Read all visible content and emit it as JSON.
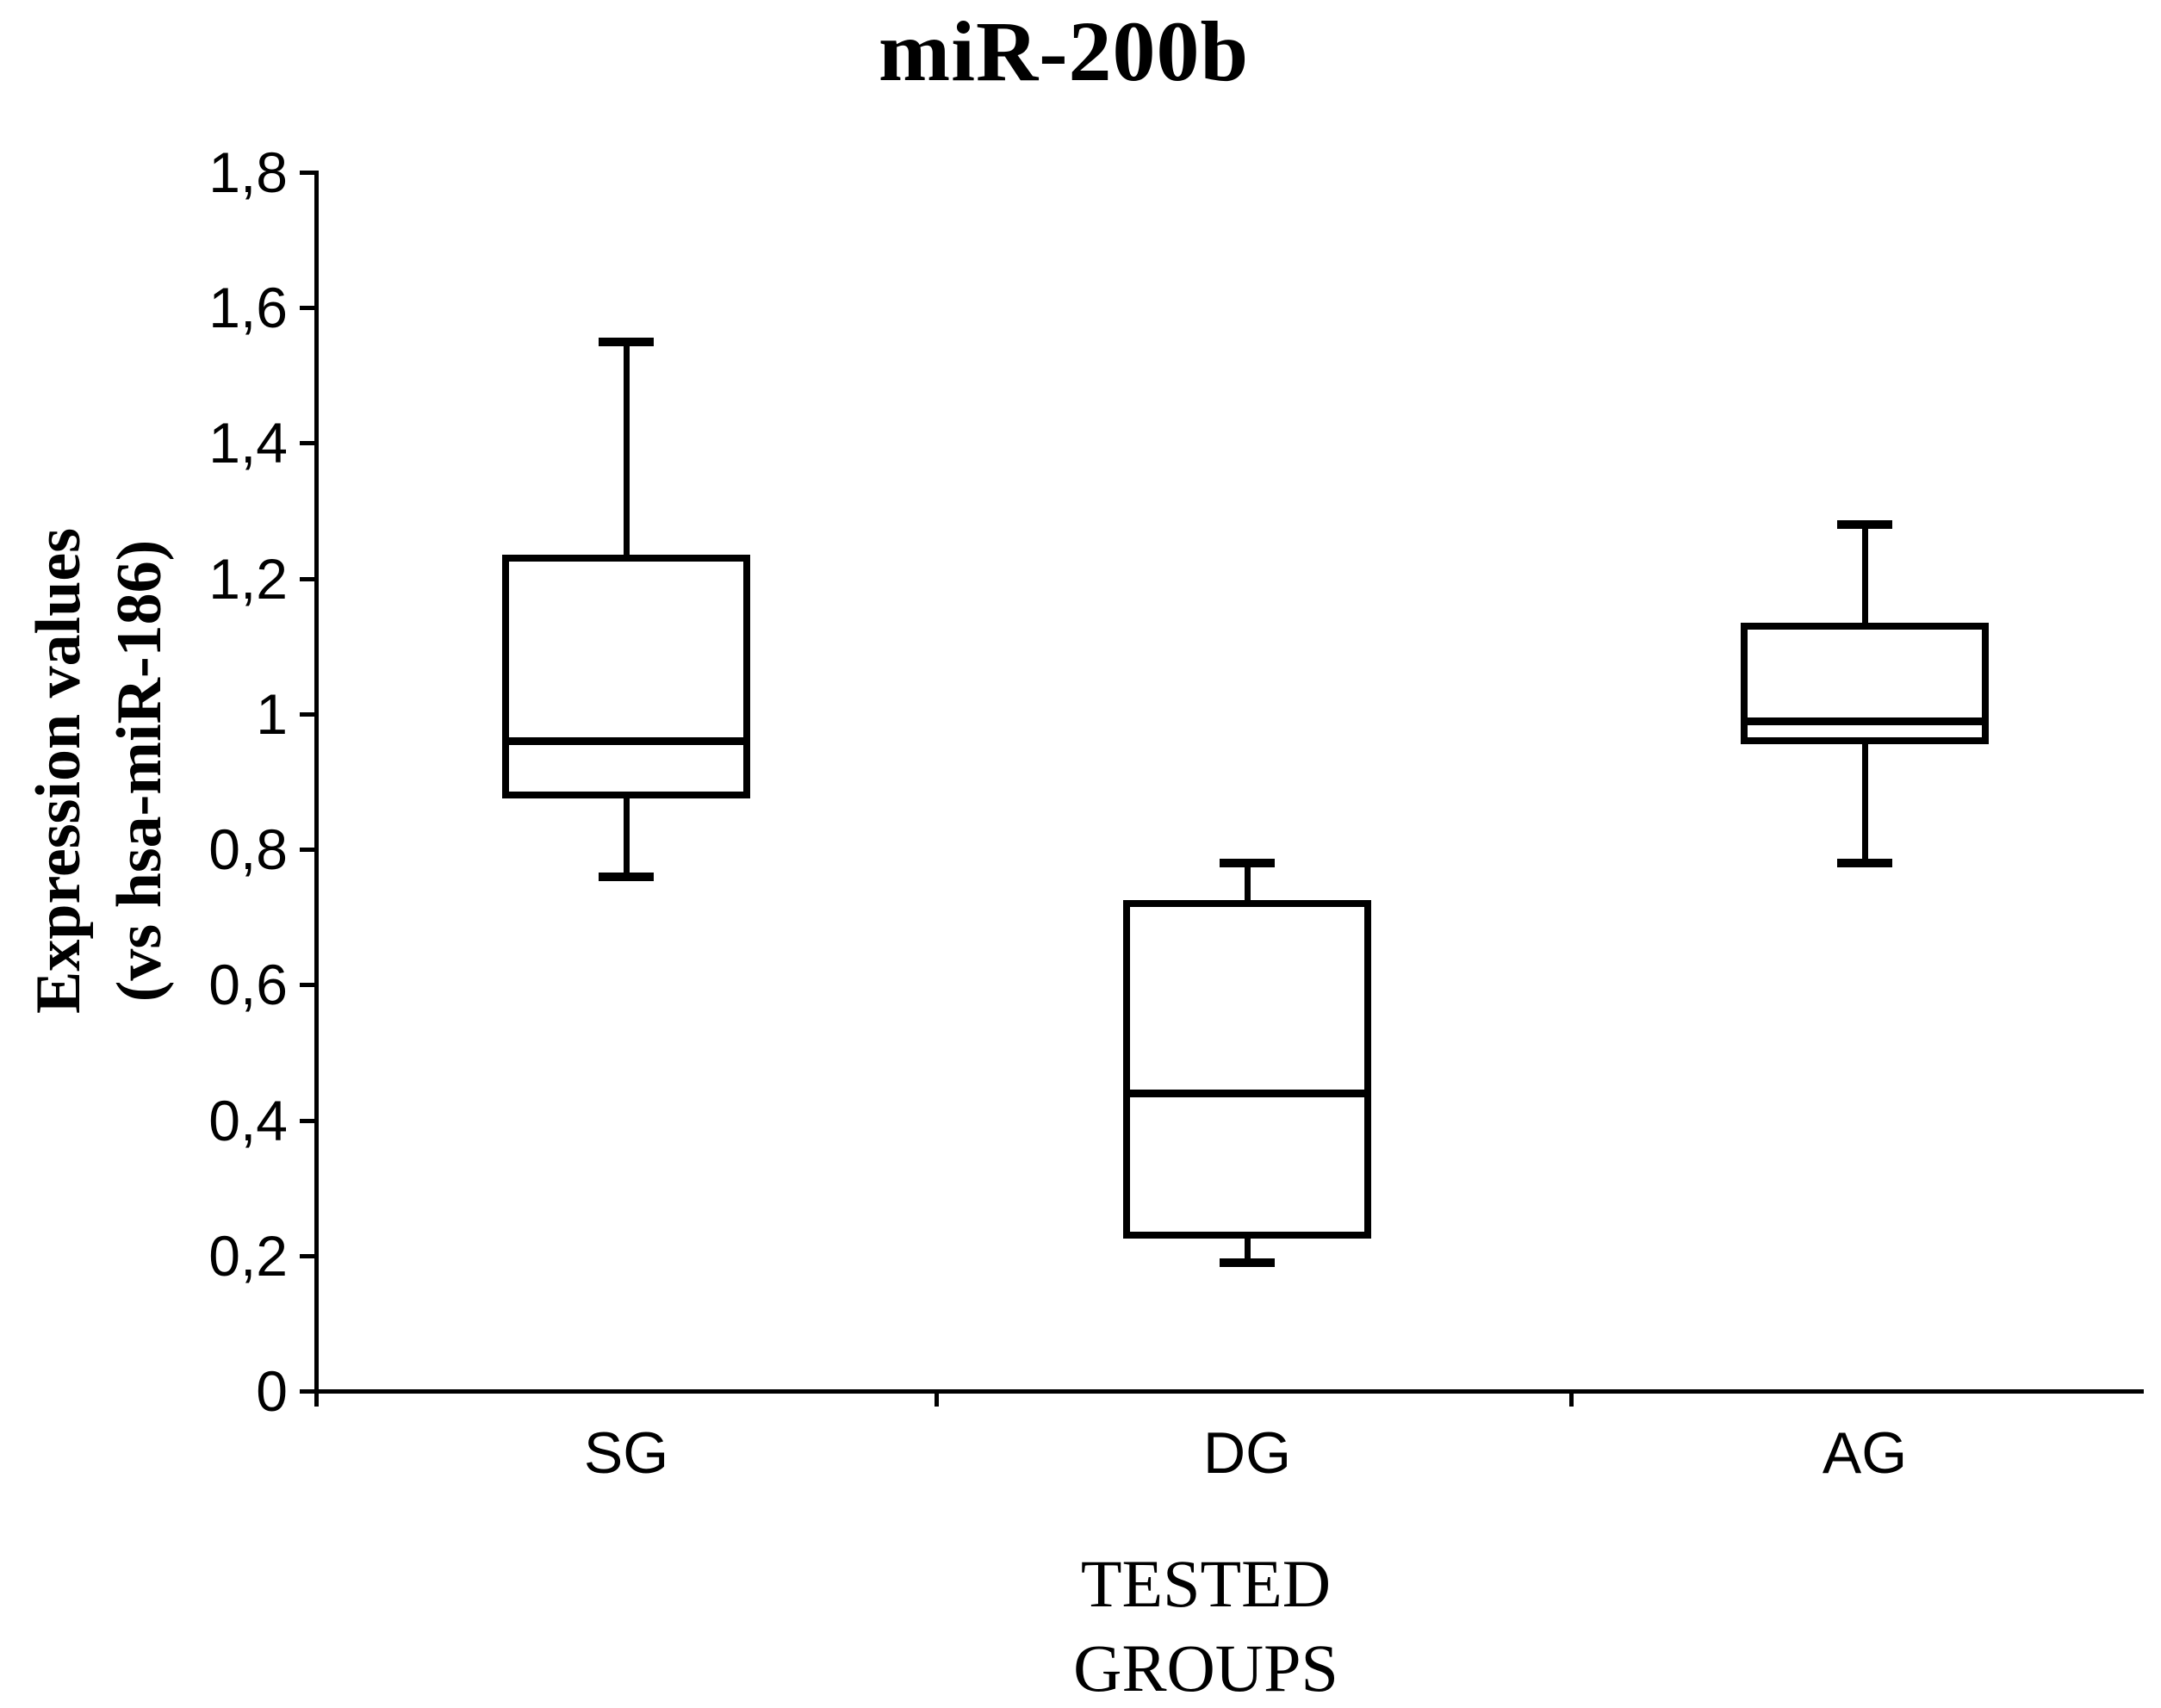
{
  "chart_data": {
    "type": "box",
    "title": "miR-200b",
    "ylabel": [
      "Expression values",
      "(vs hsa-miR-186)"
    ],
    "xlabel": [
      "TESTED",
      "GROUPS"
    ],
    "categories": [
      "SG",
      "DG",
      "AG"
    ],
    "y_ticks": [
      "1,8",
      "1,6",
      "1,4",
      "1,2",
      "1",
      "0,8",
      "0,6",
      "0,4",
      "0,2",
      "0"
    ],
    "ylim": [
      0,
      1.8
    ],
    "decimal_style": "comma",
    "grid": false,
    "legend": "none",
    "series": [
      {
        "group": "SG",
        "whisker_low": 0.76,
        "q1": 0.88,
        "median": 0.96,
        "q3": 1.23,
        "whisker_high": 1.55
      },
      {
        "group": "DG",
        "whisker_low": 0.19,
        "q1": 0.23,
        "median": 0.44,
        "q3": 0.72,
        "whisker_high": 0.78
      },
      {
        "group": "AG",
        "whisker_low": 0.78,
        "q1": 0.96,
        "median": 0.99,
        "q3": 1.13,
        "whisker_high": 1.28
      }
    ],
    "colors": {
      "stroke": "#000000",
      "background": "#ffffff"
    }
  }
}
